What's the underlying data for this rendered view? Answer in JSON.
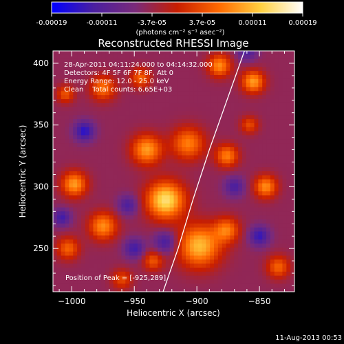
{
  "chart_data": {
    "type": "heatmap",
    "title": "Reconstructed RHESSI Image",
    "xlabel": "Heliocentric X (arcsec)",
    "ylabel": "Heliocentric Y (arcsec)",
    "xlim": [
      -1015,
      -822
    ],
    "ylim": [
      215,
      410
    ],
    "xticks": [
      -1000,
      -950,
      -900,
      -850
    ],
    "yticks": [
      250,
      300,
      350,
      400
    ],
    "grid": false,
    "colorbar": {
      "position": "top",
      "range": [
        -0.00019,
        0.00019
      ],
      "ticks": [
        "-0.00019",
        "-0.00011",
        "-3.7e-05",
        "3.7e-05",
        "0.00011",
        "0.00019"
      ],
      "unit_label": "(photons cm⁻² s⁻¹ asec⁻²)",
      "colormap": [
        "#0000ff",
        "#4a1fa0",
        "#7a2a7a",
        "#c81e00",
        "#ff6a00",
        "#ffd040",
        "#ffffff"
      ]
    },
    "annotations": [
      "28-Apr-2011 04:11:24.000 to 04:14:32.000",
      "Detectors: 4F 5F 6F 7F 8F, Att 0",
      "Energy Range: 12.0 - 25.0 keV",
      "Clean    Total counts: 6.65E+03"
    ],
    "peak_label": "Position of Peak = [-925,289]",
    "peak": {
      "x": -925,
      "y": 289
    },
    "limb_curve": [
      {
        "x": -927,
        "y": 215
      },
      {
        "x": -915,
        "y": 250
      },
      {
        "x": -903,
        "y": 290
      },
      {
        "x": -890,
        "y": 330
      },
      {
        "x": -876,
        "y": 370
      },
      {
        "x": -862,
        "y": 410
      }
    ],
    "sources": [
      {
        "x": -925,
        "y": 289,
        "v": 0.00019,
        "r": 15
      },
      {
        "x": -898,
        "y": 252,
        "v": 0.00016,
        "r": 17
      },
      {
        "x": -907,
        "y": 335,
        "v": 0.00012,
        "r": 13
      },
      {
        "x": -975,
        "y": 268,
        "v": 0.00013,
        "r": 11
      },
      {
        "x": -998,
        "y": 302,
        "v": 0.00014,
        "r": 10
      },
      {
        "x": -1003,
        "y": 250,
        "v": 0.0001,
        "r": 9
      },
      {
        "x": -940,
        "y": 330,
        "v": 0.00014,
        "r": 12
      },
      {
        "x": -876,
        "y": 265,
        "v": 0.00011,
        "r": 10
      },
      {
        "x": -876,
        "y": 325,
        "v": 0.00012,
        "r": 9
      },
      {
        "x": -845,
        "y": 300,
        "v": 0.00013,
        "r": 9
      },
      {
        "x": -855,
        "y": 385,
        "v": 0.00014,
        "r": 9
      },
      {
        "x": -882,
        "y": 398,
        "v": 0.00013,
        "r": 9
      },
      {
        "x": -975,
        "y": 380,
        "v": 0.00011,
        "r": 10
      },
      {
        "x": -1005,
        "y": 375,
        "v": 9e-05,
        "r": 7
      },
      {
        "x": -945,
        "y": 388,
        "v": 0.0001,
        "r": 8
      },
      {
        "x": -835,
        "y": 235,
        "v": 0.0001,
        "r": 9
      },
      {
        "x": -935,
        "y": 240,
        "v": 9e-05,
        "r": 8
      },
      {
        "x": -858,
        "y": 350,
        "v": 8e-05,
        "r": 7
      },
      {
        "x": -960,
        "y": 225,
        "v": 8e-05,
        "r": 8
      },
      {
        "x": -925,
        "y": 255,
        "v": -9e-05,
        "r": 9
      },
      {
        "x": -990,
        "y": 345,
        "v": -0.00011,
        "r": 8
      },
      {
        "x": -955,
        "y": 285,
        "v": -8e-05,
        "r": 8
      },
      {
        "x": -950,
        "y": 250,
        "v": -9e-05,
        "r": 8
      },
      {
        "x": -850,
        "y": 260,
        "v": -0.0001,
        "r": 8
      },
      {
        "x": -870,
        "y": 300,
        "v": -8e-05,
        "r": 8
      },
      {
        "x": -1008,
        "y": 275,
        "v": -9e-05,
        "r": 7
      },
      {
        "x": -860,
        "y": 410,
        "v": -8e-05,
        "r": 8
      }
    ]
  },
  "footer": {
    "date": "11-Aug-2013 00:53"
  }
}
